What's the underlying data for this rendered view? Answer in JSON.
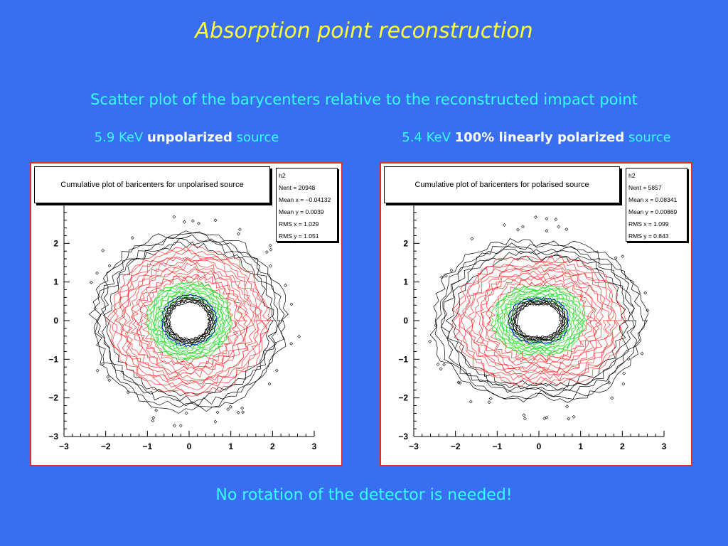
{
  "slide": {
    "title": "Absorption point reconstruction",
    "subtitle": "Scatter plot of the barycenters relative to the reconstructed impact point",
    "left_caption": {
      "energy": "5.9 KeV ",
      "bold": "unpolarized",
      "tail": " source"
    },
    "right_caption": {
      "energy": "5.4 KeV ",
      "bold": "100% linearly polarized",
      "tail": " source"
    },
    "footer": "No rotation of the detector is needed!"
  },
  "colors": {
    "background": "#3a6ef0",
    "title": "#ffff33",
    "text": "#33ffff",
    "contour_outer": "#000000",
    "contour_mid": "#ff3333",
    "contour_inner": "#22dd22",
    "contour_peak": "#0000cc",
    "panel_border": "#e0302a"
  },
  "chart_data": [
    {
      "type": "heatmap",
      "title": "Cumulative plot of baricenters for unpolarised source",
      "xlim": [
        -3,
        3
      ],
      "ylim": [
        -3,
        3
      ],
      "x_ticks": [
        "−3",
        "−2",
        "−1",
        "0",
        "1",
        "2",
        "3"
      ],
      "y_ticks": [
        "−3",
        "−2",
        "−1",
        "0",
        "1",
        "2"
      ],
      "stats": {
        "name": "h2",
        "lines": [
          "Nent = 20948",
          "Mean x = −0.04132",
          "Mean y = 0.0039",
          "RMS x  =  1.029",
          "RMS y  =  1.051"
        ]
      },
      "shape": {
        "inner_radius": 0.55,
        "outer_radius": 2.35,
        "green_ring": [
          0.6,
          1.05
        ],
        "red_extent": 1.95,
        "anisotropy": 0.0
      }
    },
    {
      "type": "heatmap",
      "title": "Cumulative plot of baricenters for polarised source",
      "xlim": [
        -3,
        3
      ],
      "ylim": [
        -3,
        3
      ],
      "x_ticks": [
        "−3",
        "−2",
        "−1",
        "0",
        "1",
        "2",
        "3"
      ],
      "y_ticks": [
        "−3",
        "−2",
        "−1",
        "0",
        "1",
        "2"
      ],
      "stats": {
        "name": "h2",
        "lines": [
          "Nent = 5857",
          "Mean x = 0.08341",
          "Mean y = 0.00869",
          "RMS x  =  1.099",
          "RMS y  =  0.843"
        ]
      },
      "shape": {
        "inner_radius": 0.55,
        "outer_radius": 2.3,
        "green_ring": [
          0.6,
          1.05
        ],
        "red_extent": 1.85,
        "anisotropy": 1.0
      }
    }
  ]
}
